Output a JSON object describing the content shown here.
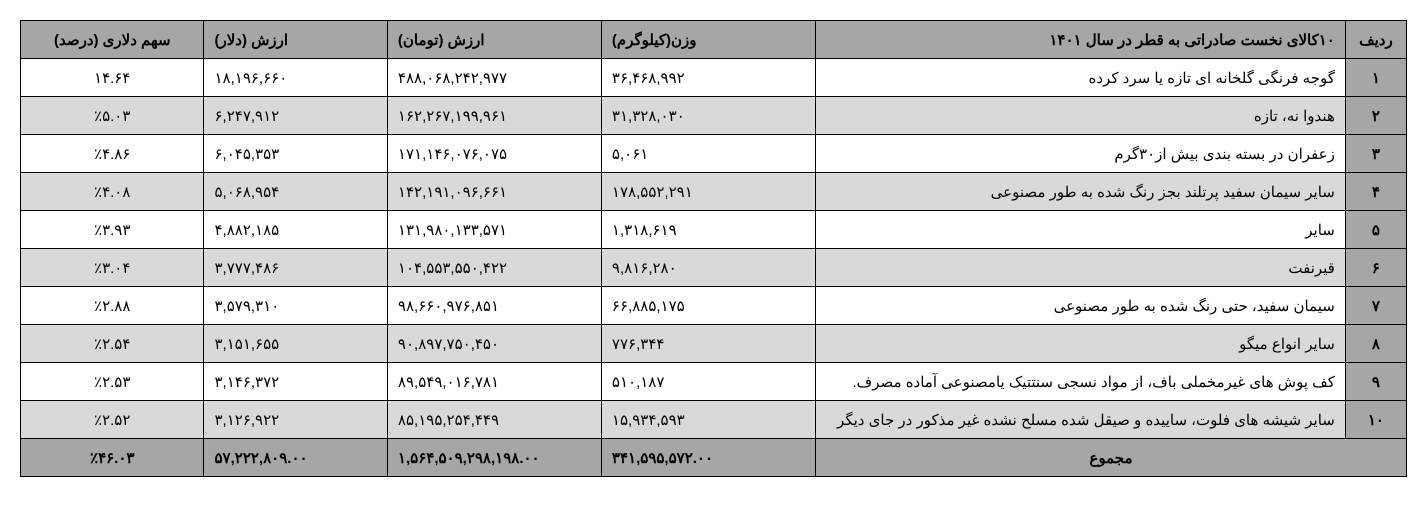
{
  "table": {
    "headers": {
      "radif": "ردیف",
      "name": "۱۰کالای نخست صادراتی به قطر در سال ۱۴۰۱",
      "weight": "وزن(کیلوگرم)",
      "toman": "ارزش (تومان)",
      "dollar": "ارزش (دلار)",
      "share": "سهم دلاری (درصد)"
    },
    "rows": [
      {
        "radif": "۱",
        "name": "گوجه فرنگی گلخانه ای تازه یا سرد کرده",
        "weight": "۳۶,۴۶۸,۹۹۲",
        "toman": "۴۸۸,۰۶۸,۲۴۲,۹۷۷",
        "dollar": "۱۸,۱۹۶,۶۶۰",
        "share": "۱۴.۶۴"
      },
      {
        "radif": "۲",
        "name": "هندوا نه، تازه",
        "weight": "۳۱,۳۲۸,۰۳۰",
        "toman": "۱۶۲,۲۶۷,۱۹۹,۹۶۱",
        "dollar": "۶,۲۴۷,۹۱۲",
        "share": "٪۵.۰۳"
      },
      {
        "radif": "۳",
        "name": "زعفران در بسته بندی بیش از۳۰گرم",
        "weight": "۵,۰۶۱",
        "toman": "۱۷۱,۱۴۶,۰۷۶,۰۷۵",
        "dollar": "۶,۰۴۵,۳۵۳",
        "share": "٪۴.۸۶"
      },
      {
        "radif": "۴",
        "name": "سایر سیمان سفید پرتلند بجز رنگ شده به طور مصنوعی",
        "weight": "۱۷۸,۵۵۲,۲۹۱",
        "toman": "۱۴۲,۱۹۱,۰۹۶,۶۶۱",
        "dollar": "۵,۰۶۸,۹۵۴",
        "share": "٪۴.۰۸"
      },
      {
        "radif": "۵",
        "name": "سایر",
        "weight": "۱,۳۱۸,۶۱۹",
        "toman": "۱۳۱,۹۸۰,۱۳۳,۵۷۱",
        "dollar": "۴,۸۸۲,۱۸۵",
        "share": "٪۳.۹۳"
      },
      {
        "radif": "۶",
        "name": "قیرنفت",
        "weight": "۹,۸۱۶,۲۸۰",
        "toman": "۱۰۴,۵۵۳,۵۵۰,۴۲۲",
        "dollar": "۳,۷۷۷,۴۸۶",
        "share": "٪۳.۰۴"
      },
      {
        "radif": "۷",
        "name": "سیمان سفید، حتی رنگ شده به طور مصنوعی",
        "weight": "۶۶,۸۸۵,۱۷۵",
        "toman": "۹۸,۶۶۰,۹۷۶,۸۵۱",
        "dollar": "۳,۵۷۹,۳۱۰",
        "share": "٪۲.۸۸"
      },
      {
        "radif": "۸",
        "name": "سایر انواع میگو",
        "weight": "۷۷۶,۳۴۴",
        "toman": "۹۰,۸۹۷,۷۵۰,۴۵۰",
        "dollar": "۳,۱۵۱,۶۵۵",
        "share": "٪۲.۵۴"
      },
      {
        "radif": "۹",
        "name": "کف پوش های غیرمخملی باف، از مواد نسجی سنتتیک یامصنوعی آماده مصرف.",
        "weight": "۵۱۰,۱۸۷",
        "toman": "۸۹,۵۴۹,۰۱۶,۷۸۱",
        "dollar": "۳,۱۴۶,۳۷۲",
        "share": "٪۲.۵۳"
      },
      {
        "radif": "۱۰",
        "name": "سایر شیشه های فلوت، ساییده و صیقل شده مسلح نشده غیر مذکور در جای دیگر",
        "weight": "۱۵,۹۳۴,۵۹۳",
        "toman": "۸۵,۱۹۵,۲۵۴,۴۴۹",
        "dollar": "۳,۱۲۶,۹۲۲",
        "share": "٪۲.۵۲"
      }
    ],
    "total": {
      "label": "مجموع",
      "weight": "۳۴۱,۵۹۵,۵۷۲.۰۰",
      "toman": "۱,۵۶۴,۵۰۹,۲۹۸,۱۹۸.۰۰",
      "dollar": "۵۷,۲۲۲,۸۰۹.۰۰",
      "share": "٪۴۶.۰۳"
    },
    "styling": {
      "header_bg": "#a6a6a6",
      "row_odd_bg": "#ffffff",
      "row_even_bg": "#d9d9d9",
      "total_bg": "#a6a6a6",
      "border_color": "#000000",
      "font_size": 15,
      "font_family": "Tahoma"
    }
  }
}
